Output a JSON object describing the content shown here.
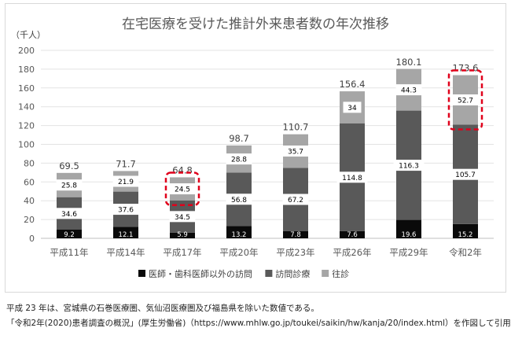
{
  "chart_data": {
    "type": "bar",
    "stacked": true,
    "title": "在宅医療を受けた推計外来患者数の年次推移",
    "unit_label": "（千人）",
    "ylim": [
      0,
      200
    ],
    "yticks": [
      0,
      20,
      40,
      60,
      80,
      100,
      120,
      140,
      160,
      180,
      200
    ],
    "grid": true,
    "legend_position": "bottom",
    "categories": [
      "平成11年",
      "平成14年",
      "平成17年",
      "平成20年",
      "平成23年",
      "平成26年",
      "平成29年",
      "令和2年"
    ],
    "series": [
      {
        "name": "医師・歯科医師以外の訪問",
        "color": "#0a0a0a",
        "label_color": "#ffffff",
        "labels_in_box": false,
        "values": [
          9.2,
          12.1,
          5.9,
          13.2,
          7.8,
          7.6,
          19.6,
          15.2
        ],
        "labels": [
          "9.2",
          "12.1",
          "5.9",
          "13.2",
          "7.8",
          "7.6",
          "19.6",
          "15.2"
        ]
      },
      {
        "name": "訪問診療",
        "color": "#595959",
        "label_color": "#000000",
        "labels_in_box": true,
        "values": [
          34.6,
          37.6,
          34.5,
          56.8,
          67.2,
          114.8,
          116.3,
          105.7
        ],
        "labels": [
          "34.6",
          "37.6",
          "34.5",
          "56.8",
          "67.2",
          "114.8",
          "116.3",
          "105.7"
        ]
      },
      {
        "name": "往診",
        "color": "#a6a6a6",
        "label_color": "#000000",
        "labels_in_box": true,
        "values": [
          25.8,
          21.9,
          24.5,
          28.8,
          35.7,
          34,
          44.3,
          52.7
        ],
        "labels": [
          "25.8",
          "21.9",
          "24.5",
          "28.8",
          "35.7",
          "34",
          "44.3",
          "52.7"
        ]
      }
    ],
    "totals": [
      69.5,
      71.7,
      64.8,
      98.7,
      110.7,
      156.4,
      180.1,
      173.6
    ],
    "total_labels": [
      "69.5",
      "71.7",
      "64.8",
      "98.7",
      "110.7",
      "156.4",
      "180.1",
      "173.6"
    ],
    "highlight": {
      "categories": [
        "平成17年",
        "令和2年"
      ],
      "series": "往診",
      "color": "#e0001b"
    }
  },
  "notes": [
    "平成 23 年は、宮城県の石巻医療圏、気仙沼医療圏及び福島県を除いた数値である。",
    "「令和2年(2020)患者調査の概況」(厚生労働省)（https://www.mhlw.go.jp/toukei/saikin/hw/kanja/20/index.html）を作図して引用"
  ]
}
